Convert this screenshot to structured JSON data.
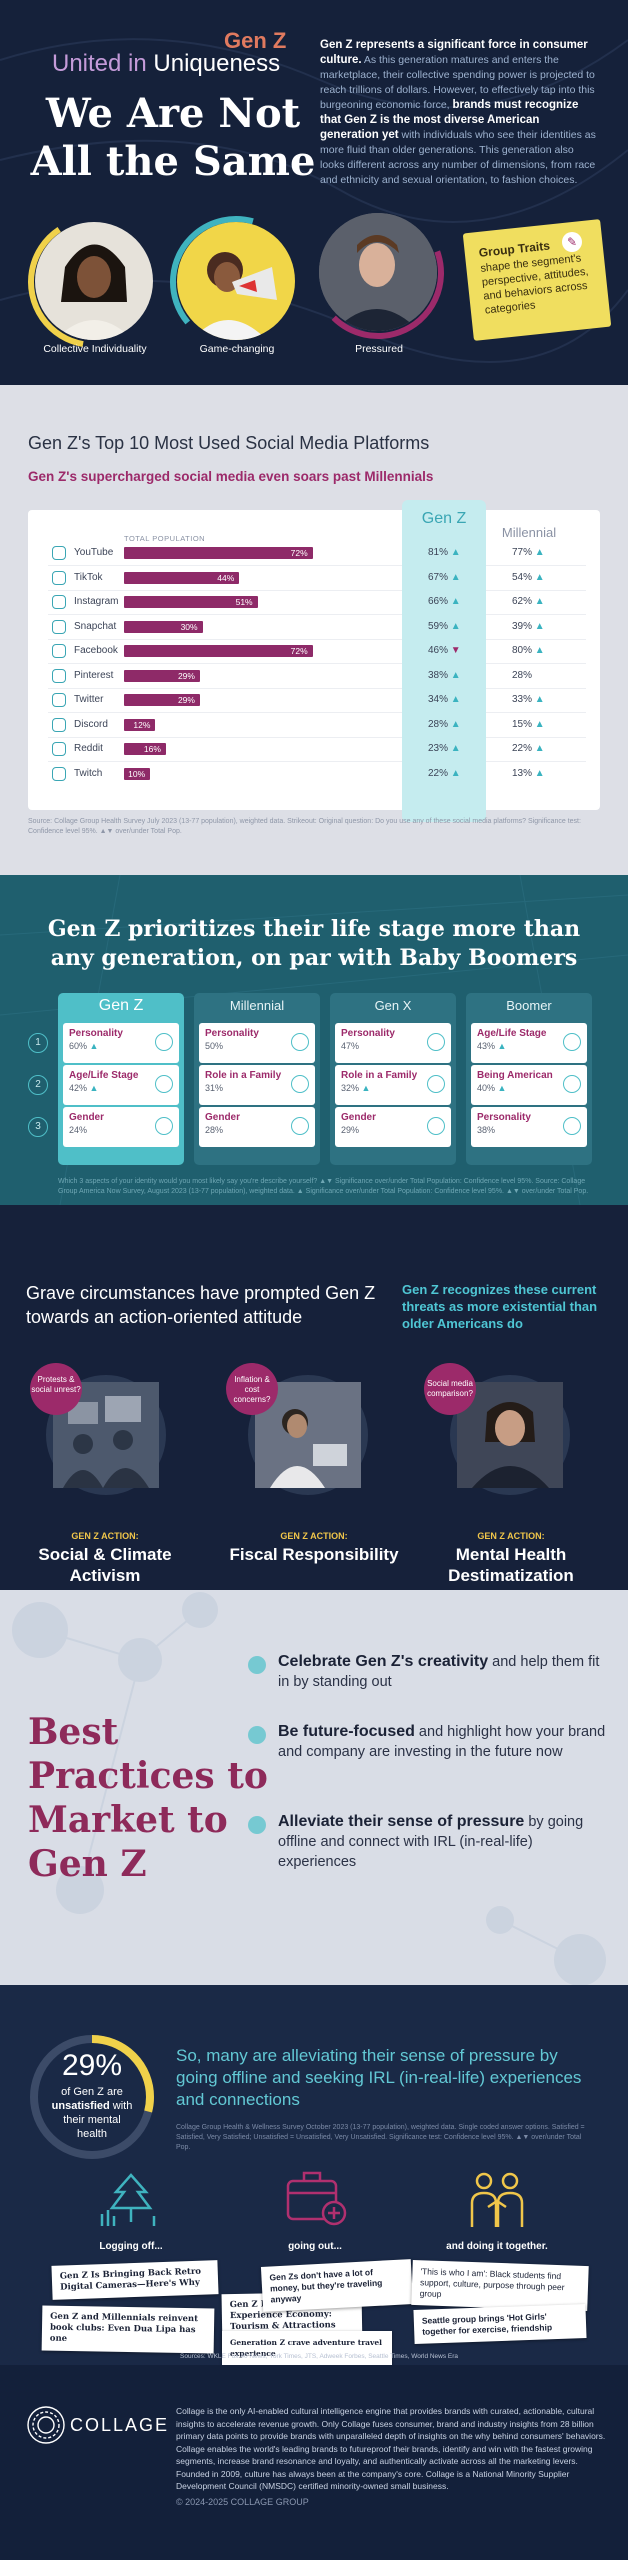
{
  "hero": {
    "gen_z": "Gen Z",
    "united": "United in",
    "uniqueness": "Uniqueness",
    "title": "We Are Not All the Same",
    "intro_lead": "Gen Z represents a significant force in consumer culture.",
    "intro_body1": " As this generation matures and enters the marketplace, their collective spending power is projected to reach trillions of dollars. However, to effectively tap into this burgeoning economic force, ",
    "intro_bold": "brands must recognize that Gen Z is the most diverse American generation yet",
    "intro_body2": " with individuals who see their identities as more fluid than older generations. This generation also looks different across any number of dimensions, from race and ethnicity and sexual orientation, to fashion choices.",
    "portraits": [
      {
        "label": "Collective Individuality"
      },
      {
        "label": "Game-changing"
      },
      {
        "label": "Pressured"
      }
    ],
    "note_title": "Group Traits",
    "note_body": "shape the segment's perspective, attitudes, and behaviors across categories"
  },
  "social": {
    "title": "Gen Z's Top 10 Most Used Social Media Platforms",
    "subtitle": "Gen Z's supercharged social media even soars past Millennials",
    "total_label": "TOTAL POPULATION",
    "genz_label": "Gen Z",
    "millennial_label": "Millennial",
    "source": "Source: Collage Group Health Survey July 2023 (13-77 population), weighted data. Strikeout: Original question: Do you use any of these social media platforms? Significance test: Confidence level 95%. ▲▼ over/under Total Pop.",
    "colors": {
      "bar": "#8e2a68",
      "genz_bg": "#c5ecef",
      "up": "#3ab3c0",
      "down": "#9c2a6a"
    }
  },
  "chart_data": {
    "type": "bar",
    "categories": [
      "YouTube",
      "TikTok",
      "Instagram",
      "Snapchat",
      "Facebook",
      "Pinterest",
      "Twitter",
      "Discord",
      "Reddit",
      "Twitch"
    ],
    "series": [
      {
        "name": "TOTAL POPULATION",
        "values": [
          72,
          44,
          51,
          30,
          72,
          29,
          29,
          12,
          16,
          10
        ]
      },
      {
        "name": "Gen Z",
        "values": [
          81,
          67,
          66,
          59,
          46,
          38,
          34,
          28,
          23,
          22
        ],
        "direction": [
          "up",
          "up",
          "up",
          "up",
          "down",
          "up",
          "up",
          "up",
          "up",
          "up"
        ]
      },
      {
        "name": "Millennial",
        "values": [
          77,
          54,
          62,
          39,
          80,
          28,
          33,
          15,
          22,
          13
        ],
        "direction": [
          "up",
          "up",
          "up",
          "up",
          "up",
          "none",
          "up",
          "up",
          "up",
          "up"
        ]
      }
    ],
    "xlim": [
      0,
      100
    ]
  },
  "life_stage": {
    "title": "Gen Z prioritizes their life stage more than any generation, on par with Baby Boomers",
    "rows": [
      "1",
      "2",
      "3"
    ],
    "columns": [
      {
        "name": "Gen Z",
        "cells": [
          {
            "label": "Personality",
            "value": "60%",
            "dir": "▲",
            "icon": "smile-icon"
          },
          {
            "label": "Age/Life Stage",
            "value": "42%",
            "dir": "▲",
            "icon": "family-icon"
          },
          {
            "label": "Gender",
            "value": "24%",
            "dir": "",
            "icon": "gender-icon"
          }
        ]
      },
      {
        "name": "Millennial",
        "cells": [
          {
            "label": "Personality",
            "value": "50%",
            "dir": "",
            "icon": "smile-icon"
          },
          {
            "label": "Role in a Family",
            "value": "31%",
            "dir": "",
            "icon": "family-icon"
          },
          {
            "label": "Gender",
            "value": "28%",
            "dir": "",
            "icon": "gender-icon"
          }
        ]
      },
      {
        "name": "Gen X",
        "cells": [
          {
            "label": "Personality",
            "value": "47%",
            "dir": "",
            "icon": "smile-icon"
          },
          {
            "label": "Role in a Family",
            "value": "32%",
            "dir": "▲",
            "icon": "family-icon"
          },
          {
            "label": "Gender",
            "value": "29%",
            "dir": "",
            "icon": "gender-icon"
          }
        ]
      },
      {
        "name": "Boomer",
        "cells": [
          {
            "label": "Age/Life Stage",
            "value": "43%",
            "dir": "▲",
            "icon": "cake-icon"
          },
          {
            "label": "Being American",
            "value": "40%",
            "dir": "▲",
            "icon": "flag-icon"
          },
          {
            "label": "Personality",
            "value": "38%",
            "dir": "",
            "icon": "smile-icon"
          }
        ]
      }
    ],
    "source": "Which 3 aspects of your identity would you most likely say you're describe yourself? ▲▼ Significance over/under Total Population: Confidence level 95%. Source: Collage Group America Now Survey, August 2023 (13-77 population), weighted data. ▲ Significance over/under Total Population: Confidence level 95%. ▲▼ over/under Total Pop."
  },
  "action": {
    "title": "Grave circumstances have prompted Gen Z towards an action-oriented attitude",
    "right": "Gen Z recognizes these current threats as more existential than older Americans do",
    "items": [
      {
        "bubble": "Protests & social unrest?",
        "tag": "GEN Z ACTION:",
        "name": "Social & Climate Activism"
      },
      {
        "bubble": "Inflation & cost concerns?",
        "tag": "GEN Z ACTION:",
        "name": "Fiscal Responsibility"
      },
      {
        "bubble": "Social media comparison?",
        "tag": "GEN Z ACTION:",
        "name": "Mental Health Destimatization"
      }
    ]
  },
  "best": {
    "title": "Best Practices to Market to Gen Z",
    "items": [
      {
        "bold": "Celebrate Gen Z's creativity",
        "rest": " and help them fit in by standing out"
      },
      {
        "bold": "Be future-focused",
        "rest": " and highlight how your brand and company are investing in the future now"
      },
      {
        "bold": "Alleviate their sense of pressure",
        "rest": " by going offline and connect with IRL (in-real-life) experiences"
      }
    ]
  },
  "irl": {
    "stat": "29%",
    "stat_fraction": 0.29,
    "stat_l1": "of Gen Z are",
    "stat_l2": "unsatisfied",
    "stat_l3": " with",
    "stat_l4": "their mental",
    "stat_l5": "health",
    "text": "So, many are alleviating their sense of pressure by going offline and seeking IRL (in-real-life) experiences and connections",
    "source": "Collage Group Health & Wellness Survey October 2023 (13-77 population), weighted data. Single coded answer options. Satisfied = Satisfied, Very Satisfied; Unsatisfied = Unsatisfied, Very Unsatisfied. Significance test: Confidence level 95%. ▲▼ over/under Total Pop.",
    "icons": [
      {
        "label": "Logging off...",
        "icon": "tree-icon"
      },
      {
        "label": "going out...",
        "icon": "suitcase-icon"
      },
      {
        "label": "and doing it together.",
        "icon": "group-icon"
      }
    ],
    "clips": [
      "Gen Z Is Bringing Back Retro Digital Cameras—Here's Why",
      "Gen Z and Millennials reinvent book clubs: Even Dua Lipa has one",
      "Gen Z Pods The Experience Economy: Tourism & Attractions Brands Take Heed",
      "Gen Zs don't have a lot of money, but they're traveling anyway",
      "Generation Z crave adventure travel experience",
      "'This is who I am': Black students find support, culture, purpose through peer group",
      "Seattle group brings 'Hot Girls' together for exercise, friendship"
    ],
    "clip_source": "Sources: WKLE Fox 40 News, York Times, JTS, Adweek Forbes, Seattle Times, World News Era"
  },
  "footer": {
    "logo": "COLLAGE",
    "about": "Collage is the only AI-enabled cultural intelligence engine that provides brands with curated, actionable, cultural insights to accelerate revenue growth. Only Collage fuses consumer, brand and industry insights from 28 billion primary data points to provide brands with unparalleled depth of insights on the why behind consumers' behaviors. Collage enables the world's leading brands to futureproof their brands, identify and win with the fastest growing segments, increase brand resonance and loyalty, and authentically activate across all the marketing levers. Founded in 2009, culture has always been at the company's core. Collage is a National Minority Supplier Development Council (NMSDC) certified minority-owned small business.",
    "copyright": "© 2024-2025 COLLAGE GROUP"
  }
}
